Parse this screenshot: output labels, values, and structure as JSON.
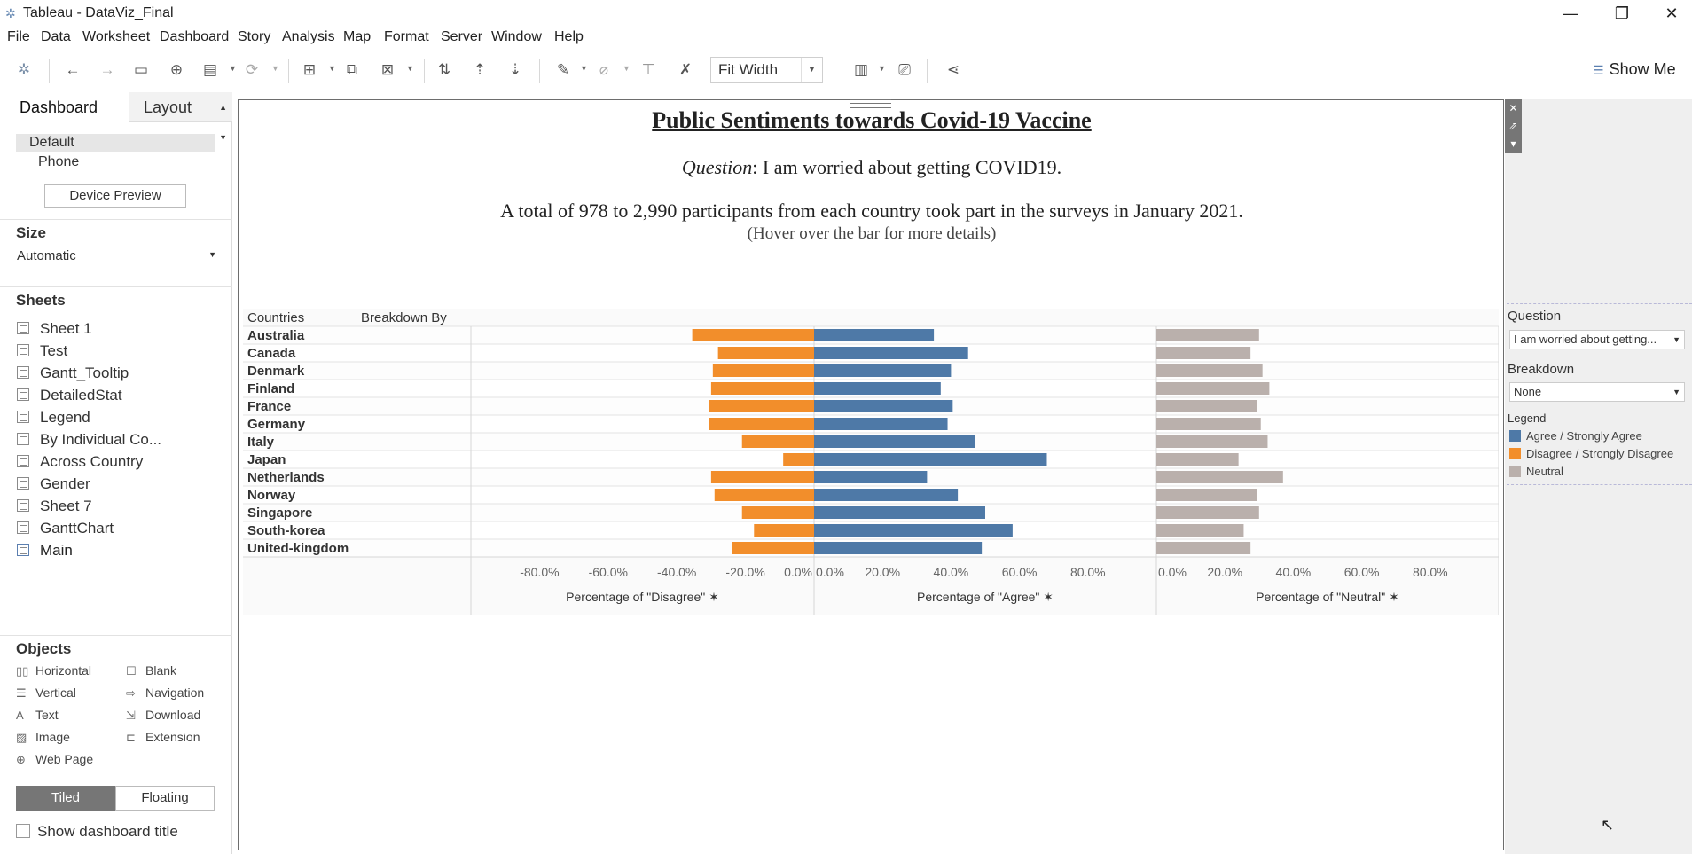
{
  "window": {
    "title": "Tableau - DataViz_Final",
    "controls": {
      "minimize": "—",
      "restore": "❐",
      "close": "✕"
    }
  },
  "menu": [
    "File",
    "Data",
    "Worksheet",
    "Dashboard",
    "Story",
    "Analysis",
    "Map",
    "Format",
    "Server",
    "Window",
    "Help"
  ],
  "toolbar": {
    "fit": "Fit Width",
    "show_me": "Show Me"
  },
  "left": {
    "tabs": {
      "dashboard": "Dashboard",
      "layout": "Layout"
    },
    "devices": {
      "default": "Default",
      "phone": "Phone",
      "preview_button": "Device Preview"
    },
    "size": {
      "header": "Size",
      "value": "Automatic"
    },
    "sheets": {
      "header": "Sheets",
      "items": [
        "Sheet 1",
        "Test",
        "Gantt_Tooltip",
        "DetailedStat",
        "Legend",
        "By Individual Co...",
        "Across Country",
        "Gender",
        "Sheet 7",
        "GanttChart",
        "Main"
      ]
    },
    "objects": {
      "header": "Objects",
      "items": [
        "Horizontal",
        "Blank",
        "Vertical",
        "Navigation",
        "Text",
        "Download",
        "Image",
        "Extension",
        "Web Page"
      ]
    },
    "layout_mode": {
      "tiled": "Tiled",
      "floating": "Floating"
    },
    "show_title": "Show dashboard title"
  },
  "dashboard": {
    "title": "Public Sentiments towards Covid-19 Vaccine",
    "question_label": "Question",
    "question_text": ": I am worried about getting COVID19.",
    "total_text": "A total of 978 to 2,990 participants from each country took part in the surveys in January 2021.",
    "hover_hint": "(Hover over the bar for more details)"
  },
  "chart_data": {
    "type": "bar",
    "row_headers": [
      "Countries",
      "Breakdown By"
    ],
    "categories": [
      "Australia",
      "Canada",
      "Denmark",
      "Finland",
      "France",
      "Germany",
      "Italy",
      "Japan",
      "Netherlands",
      "Norway",
      "Singapore",
      "South-korea",
      "United-kingdom"
    ],
    "series": [
      {
        "name": "Disagree",
        "color": "#f28e2b",
        "values": [
          -35.5,
          -28.0,
          -29.5,
          -30.0,
          -30.5,
          -30.5,
          -21.0,
          -9.0,
          -30.0,
          -29.0,
          -21.0,
          -17.5,
          -24.0
        ]
      },
      {
        "name": "Agree",
        "color": "#4e79a7",
        "values": [
          35.0,
          45.0,
          40.0,
          37.0,
          40.5,
          39.0,
          47.0,
          68.0,
          33.0,
          42.0,
          50.0,
          58.0,
          49.0
        ]
      },
      {
        "name": "Neutral",
        "color": "#bab0ac",
        "values": [
          30.0,
          27.5,
          31.0,
          33.0,
          29.5,
          30.5,
          32.5,
          24.0,
          37.0,
          29.5,
          30.0,
          25.5,
          27.5
        ]
      }
    ],
    "panels": [
      {
        "axis_title": "Percentage of \"Disagree\"",
        "xlim": [
          -100,
          0
        ],
        "ticks": [
          "-80.0%",
          "-60.0%",
          "-40.0%",
          "-20.0%",
          "0.0%"
        ],
        "tick_values": [
          -80,
          -60,
          -40,
          -20,
          0
        ]
      },
      {
        "axis_title": "Percentage of \"Agree\"",
        "xlim": [
          0,
          100
        ],
        "ticks": [
          "0.0%",
          "20.0%",
          "40.0%",
          "60.0%",
          "80.0%"
        ],
        "tick_values": [
          0,
          20,
          40,
          60,
          80
        ]
      },
      {
        "axis_title": "Percentage of \"Neutral\"",
        "xlim": [
          0,
          100
        ],
        "ticks": [
          "0.0%",
          "20.0%",
          "40.0%",
          "60.0%",
          "80.0%"
        ],
        "tick_values": [
          0,
          20,
          40,
          60,
          80
        ]
      }
    ]
  },
  "right": {
    "question_header": "Question",
    "question_value": "I am worried about getting...",
    "breakdown_header": "Breakdown",
    "breakdown_value": "None",
    "legend_header": "Legend",
    "legend": [
      {
        "label": "Agree / Strongly Agree",
        "color": "#4e79a7"
      },
      {
        "label": "Disagree / Strongly Disagree",
        "color": "#f28e2b"
      },
      {
        "label": "Neutral",
        "color": "#bab0ac"
      }
    ]
  }
}
